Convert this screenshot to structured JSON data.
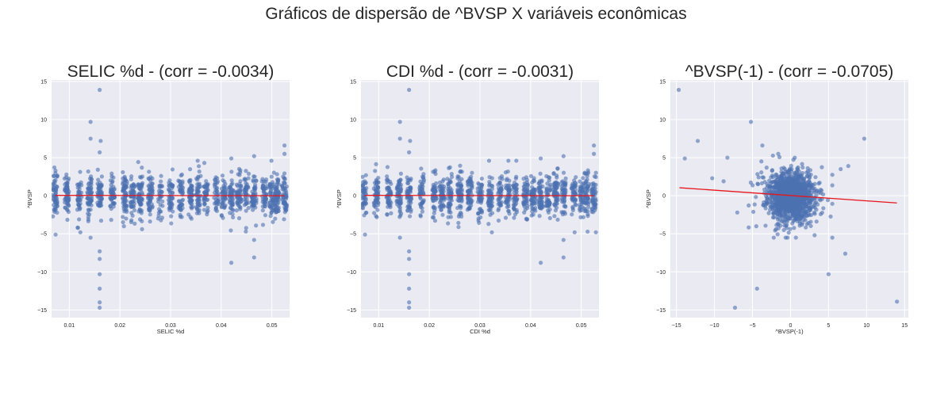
{
  "figure": {
    "suptitle": "Gráficos de dispersão de ^BVSP X variáveis econômicas"
  },
  "style": {
    "panel_bg": "#eaeaf2",
    "grid": "#ffffff",
    "point_color": "#4c72b0",
    "line_color": "#e8161b",
    "text_color": "#262626"
  },
  "chart_data": [
    {
      "type": "scatter",
      "title": "SELIC %d - (corr = -0.0034)",
      "xlabel": "SELIC %d",
      "ylabel": "^BVSP",
      "xlim": [
        0.0065,
        0.0535
      ],
      "ylim": [
        -16,
        15.2
      ],
      "xticks": [
        0.01,
        0.02,
        0.03,
        0.04,
        0.05
      ],
      "xtick_labels": [
        "0.01",
        "0.02",
        "0.03",
        "0.04",
        "0.05"
      ],
      "yticks": [
        -15,
        -10,
        -5,
        0,
        5,
        10,
        15
      ],
      "ytick_labels": [
        "−15",
        "−10",
        "−5",
        "0",
        "5",
        "10",
        "15"
      ],
      "grid": true,
      "trend_line": {
        "x": [
          0.0072,
          0.0525
        ],
        "y": [
          0.05,
          0.0
        ]
      },
      "point_style": {
        "x_clusters": [
          0.0072,
          0.0095,
          0.012,
          0.014,
          0.016,
          0.0185,
          0.021,
          0.0225,
          0.024,
          0.026,
          0.028,
          0.03,
          0.032,
          0.034,
          0.0355,
          0.037,
          0.039,
          0.0405,
          0.042,
          0.0435,
          0.045,
          0.0465,
          0.0485,
          0.05,
          0.051,
          0.0525
        ],
        "y_spread": 1.3
      },
      "outliers": [
        {
          "x": 0.016,
          "y": 13.9
        },
        {
          "x": 0.0142,
          "y": 9.7
        },
        {
          "x": 0.0142,
          "y": 7.5
        },
        {
          "x": 0.0162,
          "y": 7.2
        },
        {
          "x": 0.016,
          "y": 5.7
        },
        {
          "x": 0.0142,
          "y": -5.5
        },
        {
          "x": 0.016,
          "y": -7.3
        },
        {
          "x": 0.016,
          "y": -8.3
        },
        {
          "x": 0.016,
          "y": -10.3
        },
        {
          "x": 0.016,
          "y": -12.2
        },
        {
          "x": 0.016,
          "y": -14.0
        },
        {
          "x": 0.016,
          "y": -14.7
        },
        {
          "x": 0.0073,
          "y": -5.1
        },
        {
          "x": 0.042,
          "y": -8.8
        },
        {
          "x": 0.0465,
          "y": -8.1
        },
        {
          "x": 0.0465,
          "y": -5.8
        },
        {
          "x": 0.0525,
          "y": 6.6
        },
        {
          "x": 0.0525,
          "y": 5.5
        },
        {
          "x": 0.042,
          "y": 4.9
        },
        {
          "x": 0.0465,
          "y": 5.2
        }
      ]
    },
    {
      "type": "scatter",
      "title": "CDI %d - (corr = -0.0031)",
      "xlabel": "CDI %d",
      "ylabel": "^BVSP",
      "xlim": [
        0.0065,
        0.0535
      ],
      "ylim": [
        -16,
        15.2
      ],
      "xticks": [
        0.01,
        0.02,
        0.03,
        0.04,
        0.05
      ],
      "xtick_labels": [
        "0.01",
        "0.02",
        "0.03",
        "0.04",
        "0.05"
      ],
      "yticks": [
        -15,
        -10,
        -5,
        0,
        5,
        10,
        15
      ],
      "ytick_labels": [
        "−15",
        "−10",
        "−5",
        "0",
        "5",
        "10",
        "15"
      ],
      "grid": true,
      "trend_line": {
        "x": [
          0.0072,
          0.0525
        ],
        "y": [
          0.05,
          0.0
        ]
      },
      "point_style": {
        "x_clusters": [
          0.0072,
          0.0095,
          0.012,
          0.014,
          0.016,
          0.0185,
          0.021,
          0.0225,
          0.024,
          0.026,
          0.028,
          0.03,
          0.032,
          0.034,
          0.0355,
          0.037,
          0.039,
          0.0405,
          0.042,
          0.0435,
          0.045,
          0.0465,
          0.0485,
          0.05,
          0.051,
          0.0525
        ],
        "y_spread": 1.3
      },
      "outliers": [
        {
          "x": 0.016,
          "y": 13.9
        },
        {
          "x": 0.0142,
          "y": 9.7
        },
        {
          "x": 0.0142,
          "y": 7.5
        },
        {
          "x": 0.0162,
          "y": 7.2
        },
        {
          "x": 0.016,
          "y": 5.7
        },
        {
          "x": 0.0142,
          "y": -5.5
        },
        {
          "x": 0.016,
          "y": -7.3
        },
        {
          "x": 0.016,
          "y": -8.3
        },
        {
          "x": 0.016,
          "y": -10.3
        },
        {
          "x": 0.016,
          "y": -12.2
        },
        {
          "x": 0.016,
          "y": -14.0
        },
        {
          "x": 0.016,
          "y": -14.7
        },
        {
          "x": 0.0073,
          "y": -5.1
        },
        {
          "x": 0.042,
          "y": -8.8
        },
        {
          "x": 0.0465,
          "y": -8.1
        },
        {
          "x": 0.0465,
          "y": -5.8
        },
        {
          "x": 0.0525,
          "y": 6.6
        },
        {
          "x": 0.0525,
          "y": 5.5
        },
        {
          "x": 0.042,
          "y": 4.9
        },
        {
          "x": 0.0465,
          "y": 5.2
        }
      ]
    },
    {
      "type": "scatter",
      "title": "^BVSP(-1) - (corr = -0.0705)",
      "xlabel": "^BVSP(-1)",
      "ylabel": "^BVSP",
      "xlim": [
        -15.8,
        15.5
      ],
      "ylim": [
        -16,
        15.2
      ],
      "xticks": [
        -15,
        -10,
        -5,
        0,
        5,
        10,
        15
      ],
      "xtick_labels": [
        "−15",
        "−10",
        "−5",
        "0",
        "5",
        "10",
        "15"
      ],
      "yticks": [
        -15,
        -10,
        -5,
        0,
        5,
        10,
        15
      ],
      "ytick_labels": [
        "−15",
        "−10",
        "−5",
        "0",
        "5",
        "10",
        "15"
      ],
      "grid": true,
      "trend_line": {
        "x": [
          -14.6,
          14.0
        ],
        "y": [
          1.05,
          -0.95
        ]
      },
      "point_style": {
        "center": [
          0,
          0
        ],
        "spread": 1.5
      },
      "outliers": [
        {
          "x": -14.7,
          "y": 13.9
        },
        {
          "x": -5.2,
          "y": 9.7
        },
        {
          "x": 9.7,
          "y": 7.5
        },
        {
          "x": -12.2,
          "y": 7.2
        },
        {
          "x": -13.9,
          "y": 4.9
        },
        {
          "x": -8.3,
          "y": 5.0
        },
        {
          "x": -10.3,
          "y": 2.3
        },
        {
          "x": -3.7,
          "y": 6.6
        },
        {
          "x": 7.2,
          "y": -7.6
        },
        {
          "x": 5.0,
          "y": -10.3
        },
        {
          "x": 14.0,
          "y": -13.9
        },
        {
          "x": -7.3,
          "y": -14.7
        },
        {
          "x": -4.4,
          "y": -12.2
        },
        {
          "x": -8.8,
          "y": 1.9
        },
        {
          "x": -7.0,
          "y": -2.2
        },
        {
          "x": 6.6,
          "y": 3.5
        },
        {
          "x": 7.6,
          "y": 3.9
        },
        {
          "x": 5.5,
          "y": -5.5
        },
        {
          "x": -4.5,
          "y": -4.0
        }
      ]
    }
  ]
}
